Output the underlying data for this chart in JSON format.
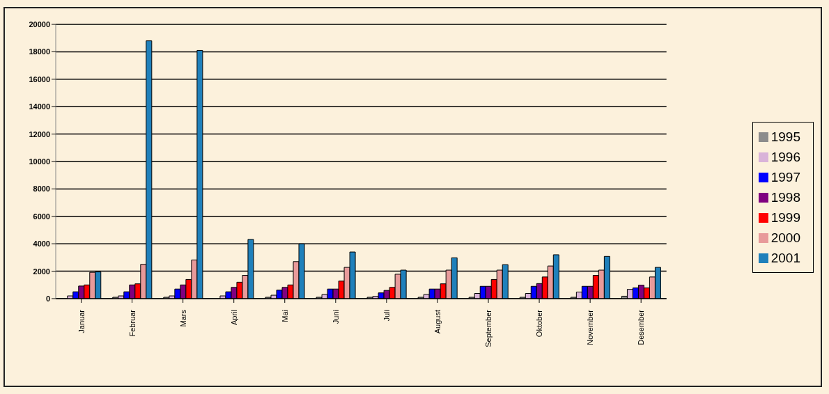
{
  "chart_data": {
    "type": "bar",
    "categories": [
      "Januar",
      "Februar",
      "Mars",
      "April",
      "Mai",
      "Juni",
      "Juli",
      "August",
      "September",
      "Oktober",
      "November",
      "Desember"
    ],
    "series": [
      {
        "name": "1995",
        "color": "#8c8c8c",
        "values": [
          0,
          100,
          100,
          0,
          100,
          100,
          100,
          100,
          100,
          100,
          100,
          180
        ]
      },
      {
        "name": "1996",
        "color": "#d9b3d9",
        "values": [
          200,
          200,
          200,
          200,
          250,
          300,
          170,
          300,
          380,
          380,
          480,
          680
        ]
      },
      {
        "name": "1997",
        "color": "#0000ff",
        "values": [
          500,
          500,
          700,
          500,
          620,
          700,
          420,
          700,
          900,
          900,
          900,
          780
        ]
      },
      {
        "name": "1998",
        "color": "#800080",
        "values": [
          920,
          1000,
          1000,
          820,
          820,
          700,
          600,
          700,
          900,
          1100,
          900,
          980
        ]
      },
      {
        "name": "1999",
        "color": "#ff0000",
        "values": [
          1000,
          1080,
          1400,
          1200,
          1000,
          1280,
          820,
          1080,
          1400,
          1580,
          1700,
          780
        ]
      },
      {
        "name": "2000",
        "color": "#e89a9a",
        "values": [
          1920,
          2500,
          2820,
          1700,
          2700,
          2280,
          1780,
          2080,
          2080,
          2380,
          2080,
          1580
        ]
      },
      {
        "name": "2001",
        "color": "#1f80bb",
        "values": [
          1950,
          18800,
          18100,
          4320,
          4000,
          3400,
          2080,
          2980,
          2480,
          3200,
          3080,
          2280
        ]
      }
    ],
    "ylim": [
      0,
      20000
    ],
    "yticks": [
      0,
      2000,
      4000,
      6000,
      8000,
      10000,
      12000,
      14000,
      16000,
      18000,
      20000
    ],
    "grid": "y",
    "legend": "right"
  }
}
